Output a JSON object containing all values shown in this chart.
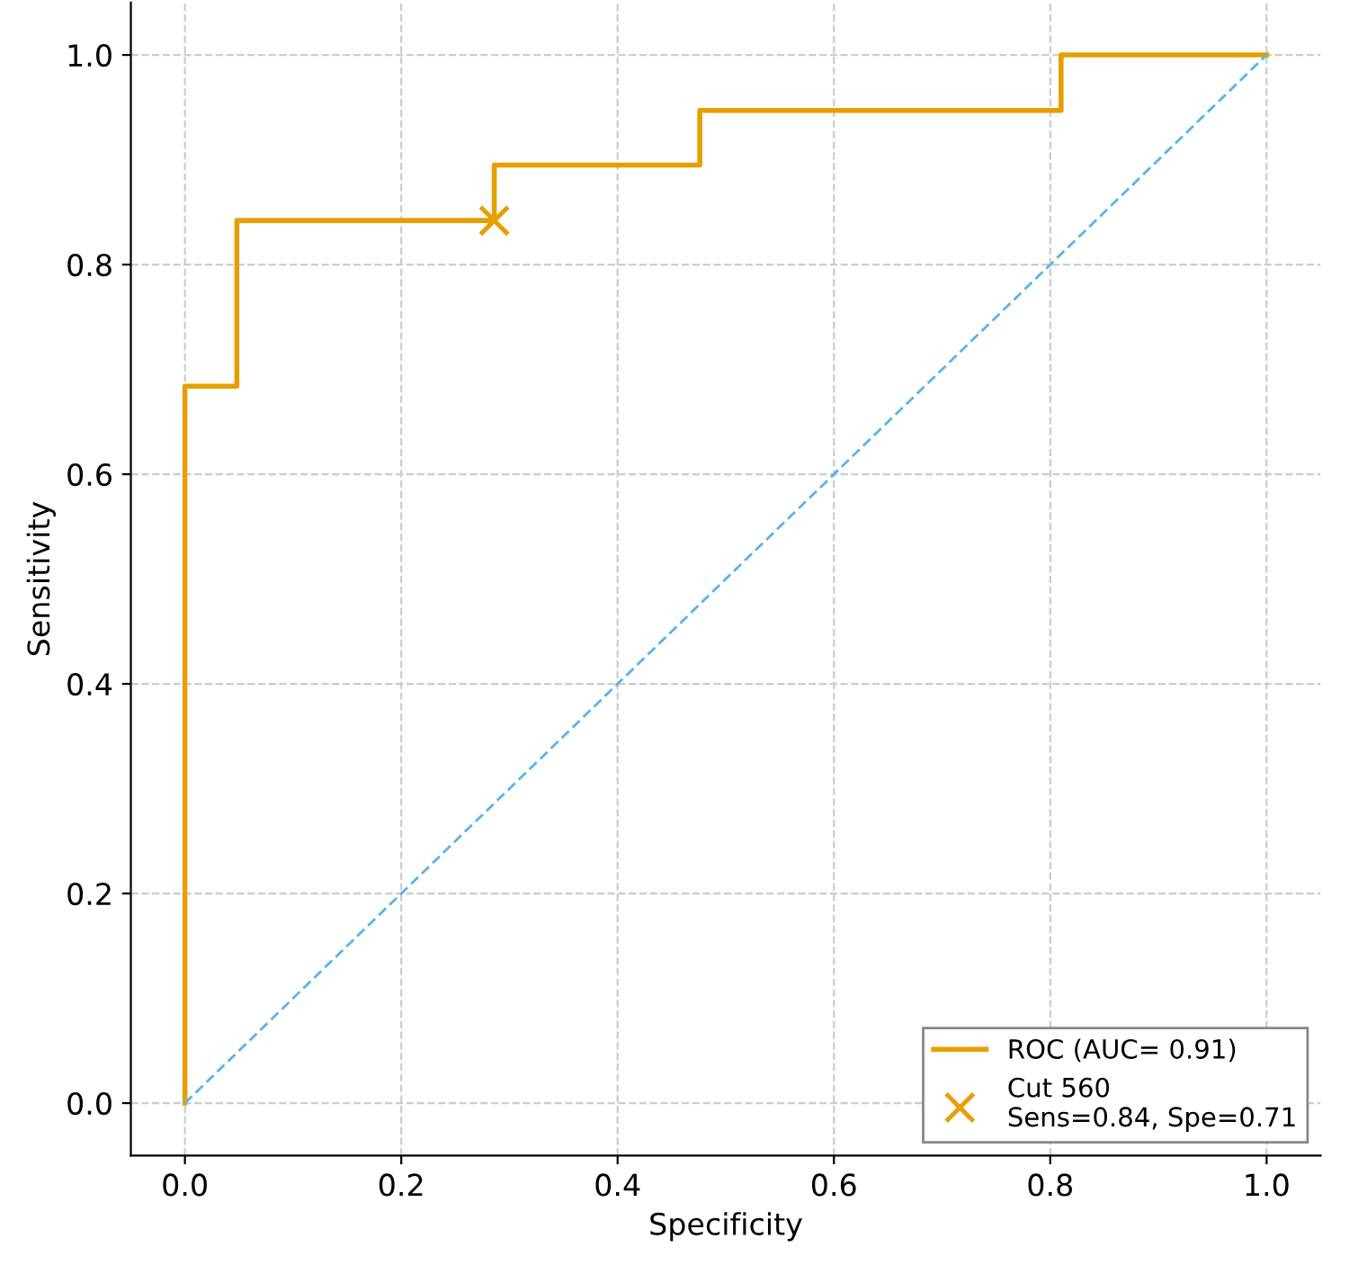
{
  "chart_data": {
    "type": "line",
    "xlabel": "Specificity",
    "ylabel": "Sensitivity",
    "xlim": [
      -0.05,
      1.05
    ],
    "ylim": [
      -0.05,
      1.05
    ],
    "xticks": [
      {
        "value": 0,
        "label": "0.0"
      },
      {
        "value": 0.2,
        "label": "0.2"
      },
      {
        "value": 0.4,
        "label": "0.4"
      },
      {
        "value": 0.6,
        "label": "0.6"
      },
      {
        "value": 0.8,
        "label": "0.8"
      },
      {
        "value": 1,
        "label": "1.0"
      }
    ],
    "yticks": [
      {
        "value": 0,
        "label": "0.0"
      },
      {
        "value": 0.2,
        "label": "0.2"
      },
      {
        "value": 0.4,
        "label": "0.4"
      },
      {
        "value": 0.6,
        "label": "0.6"
      },
      {
        "value": 0.8,
        "label": "0.8"
      },
      {
        "value": 1,
        "label": "1.0"
      }
    ],
    "grid": true,
    "legend": "bottom right",
    "series": [
      {
        "name": "ROC (AUC= 0.91)",
        "color": "#e69f00",
        "line_style": "solid",
        "x": [
          0,
          0,
          0.048,
          0.048,
          0.286,
          0.286,
          0.476,
          0.476,
          0.81,
          0.81,
          1
        ],
        "values": [
          0,
          0.684,
          0.684,
          0.842,
          0.842,
          0.895,
          0.895,
          0.947,
          0.947,
          1,
          1
        ]
      },
      {
        "name": "Cut 560\nSens=0.84, Spe=0.71",
        "type": "scatter",
        "marker": "cross",
        "color": "#e69f00",
        "x": [
          0.286
        ],
        "values": [
          0.842
        ]
      },
      {
        "type": "line",
        "color": "#56b4e9",
        "line_style": "dashed",
        "x": [
          0,
          1
        ],
        "values": [
          0,
          1
        ]
      }
    ]
  }
}
